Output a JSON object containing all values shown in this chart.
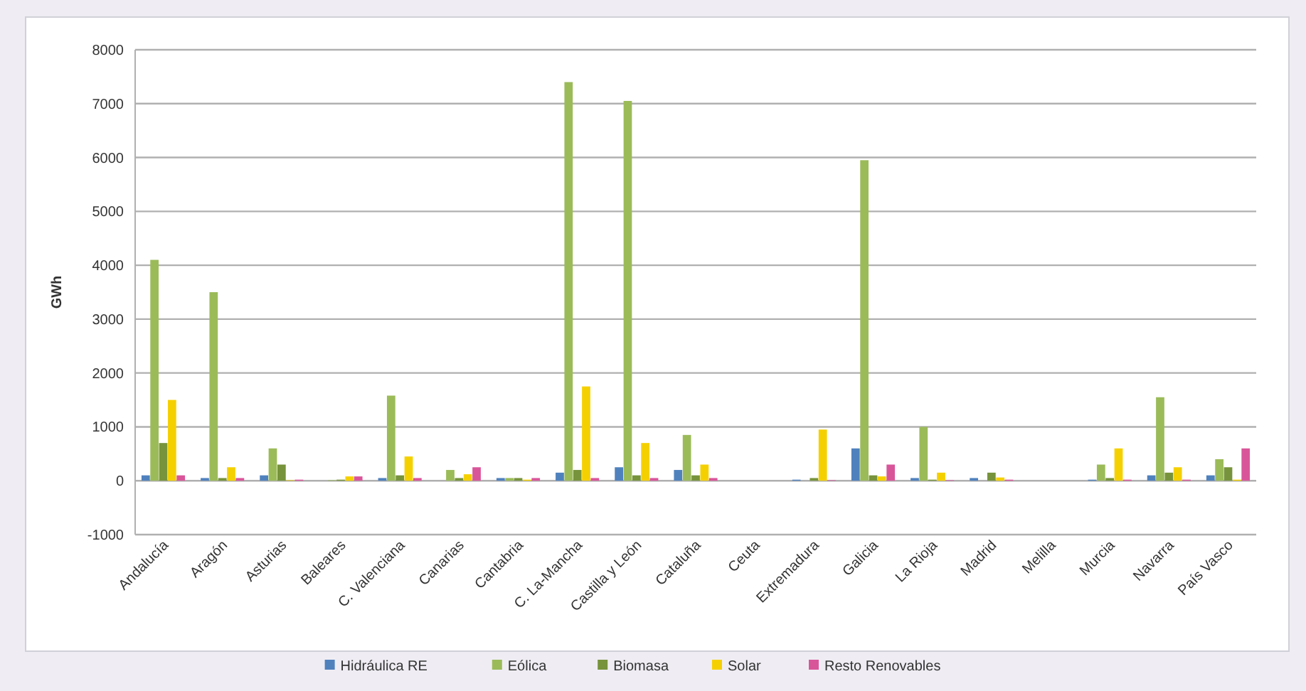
{
  "chart_data": {
    "type": "bar",
    "ylabel": "GWh",
    "categories": [
      "Andalucía",
      "Aragón",
      "Asturias",
      "Baleares",
      "C. Valenciana",
      "Canarias",
      "Cantabria",
      "C. La-Mancha",
      "Castilla y León",
      "Cataluña",
      "Ceuta",
      "Extremadura",
      "Galicia",
      "La Rioja",
      "Madrid",
      "Melilla",
      "Murcia",
      "Navarra",
      "País Vasco"
    ],
    "series": [
      {
        "name": "Hidráulica RE",
        "color": "#4f81bd",
        "values": [
          100,
          50,
          100,
          0,
          50,
          0,
          50,
          150,
          250,
          200,
          0,
          20,
          600,
          50,
          50,
          0,
          20,
          100,
          100
        ]
      },
      {
        "name": "Eólica",
        "color": "#9bbb59",
        "values": [
          4100,
          3500,
          600,
          10,
          1580,
          200,
          50,
          7400,
          7050,
          850,
          0,
          0,
          5950,
          1000,
          0,
          0,
          300,
          1550,
          400
        ]
      },
      {
        "name": "Biomasa",
        "color": "#77933c",
        "values": [
          700,
          50,
          300,
          20,
          100,
          50,
          50,
          200,
          100,
          100,
          0,
          50,
          100,
          20,
          150,
          0,
          50,
          150,
          250
        ]
      },
      {
        "name": "Solar",
        "color": "#f5d000",
        "values": [
          1500,
          250,
          10,
          80,
          450,
          120,
          20,
          1750,
          700,
          300,
          0,
          950,
          80,
          150,
          60,
          0,
          600,
          250,
          20
        ]
      },
      {
        "name": "Resto Renovables",
        "color": "#d9559a",
        "values": [
          100,
          50,
          20,
          80,
          50,
          250,
          50,
          50,
          50,
          50,
          0,
          10,
          300,
          10,
          20,
          0,
          20,
          20,
          600
        ]
      }
    ],
    "ylim": [
      -1000,
      8000
    ],
    "yticks": [
      -1000,
      0,
      1000,
      2000,
      3000,
      4000,
      5000,
      6000,
      7000,
      8000
    ],
    "grid": "y",
    "legend": "bottom"
  }
}
